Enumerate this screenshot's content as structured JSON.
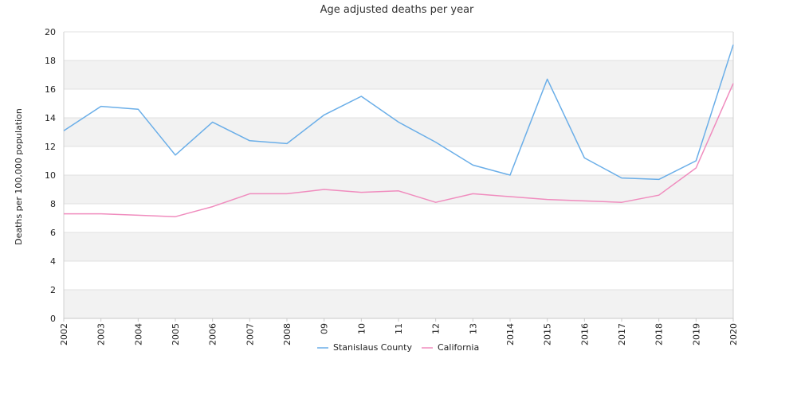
{
  "chart_data": {
    "type": "line",
    "title": "Age adjusted deaths per year",
    "xlabel": "",
    "ylabel": "Deaths per 100,000 population",
    "categories": [
      "2002",
      "2003",
      "2004",
      "2005",
      "2006",
      "2007",
      "2008",
      "09",
      "10",
      "11",
      "12",
      "13",
      "2014",
      "2015",
      "2016",
      "2017",
      "2018",
      "2019",
      "2020"
    ],
    "ylim": [
      0,
      20
    ],
    "yticks": [
      "0",
      "2",
      "4",
      "6",
      "8",
      "10",
      "12",
      "14",
      "16",
      "18",
      "20"
    ],
    "grid": "horizontal alternating bands",
    "legend_position": "bottom-center",
    "series": [
      {
        "name": "Stanislaus County",
        "color": "#6aaee8",
        "values": [
          13.1,
          14.8,
          14.6,
          11.4,
          13.7,
          12.4,
          12.2,
          14.2,
          15.5,
          13.7,
          12.3,
          10.7,
          10.0,
          16.7,
          11.2,
          9.8,
          9.7,
          11.0,
          19.1
        ]
      },
      {
        "name": "California",
        "color": "#f08cbe",
        "values": [
          7.3,
          7.3,
          7.2,
          7.1,
          7.8,
          8.7,
          8.7,
          9.0,
          8.8,
          8.9,
          8.1,
          8.7,
          8.5,
          8.3,
          8.2,
          8.1,
          8.6,
          10.5,
          16.4
        ]
      }
    ]
  }
}
